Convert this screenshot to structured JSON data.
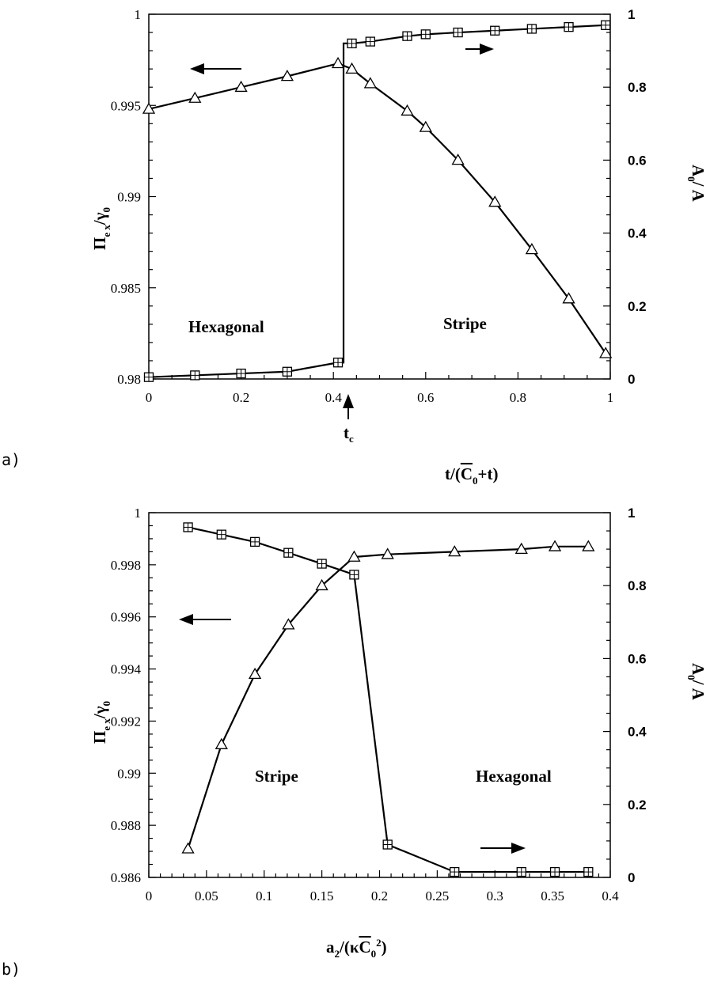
{
  "chart_data": [
    {
      "type": "line",
      "panel_label": "a)",
      "xlabel": "t/(C̄0+t)",
      "xlabel_parts": {
        "pre": "t/(",
        "C": "C",
        "sub": "0",
        "post": "+t)"
      },
      "ylabel_left": "Πex/γ0",
      "ylabel_left_parts": {
        "Pi": "Π",
        "sub1": "e x",
        "slash": "/",
        "gamma": "γ",
        "sub2": "0"
      },
      "ylabel_right": "A0/A",
      "ylabel_right_parts": {
        "A": "A",
        "sub": "0",
        "post": "/ A"
      },
      "xlim": [
        0,
        1
      ],
      "ylim_left": [
        0.98,
        1
      ],
      "ylim_right": [
        0,
        1
      ],
      "x_ticks": [
        "0",
        "0.2",
        "0.4",
        "0.6",
        "0.8",
        "1"
      ],
      "y_left_ticks": [
        "0.98",
        "0.985",
        "0.99",
        "0.995",
        "1"
      ],
      "y_right_ticks": [
        "0",
        "0.2",
        "0.4",
        "0.6",
        "0.8",
        "1"
      ],
      "annotations": {
        "left_region": "Hexagonal",
        "right_region": "Stripe",
        "tc": "t",
        "tc_sub": "c"
      },
      "tc_value": 0.422,
      "series": [
        {
          "marker": "triangle",
          "axis": "left",
          "x": [
            0,
            0.1,
            0.2,
            0.3,
            0.41,
            0.44,
            0.48,
            0.56,
            0.6,
            0.67,
            0.75,
            0.83,
            0.91,
            0.99
          ],
          "y": [
            0.9948,
            0.9954,
            0.996,
            0.9966,
            0.9973,
            0.997,
            0.9962,
            0.9947,
            0.9938,
            0.992,
            0.9897,
            0.9871,
            0.9844,
            0.9814
          ]
        },
        {
          "marker": "square-plus",
          "axis": "right",
          "x": [
            0,
            0.1,
            0.2,
            0.3,
            0.41,
            0.44,
            0.48,
            0.56,
            0.6,
            0.67,
            0.75,
            0.83,
            0.91,
            0.99
          ],
          "y": [
            0.005,
            0.01,
            0.015,
            0.02,
            0.045,
            0.92,
            0.925,
            0.94,
            0.945,
            0.95,
            0.955,
            0.96,
            0.965,
            0.97
          ]
        }
      ]
    },
    {
      "type": "line",
      "panel_label": "b)",
      "xlabel": "a2/(κC̄0²)",
      "xlabel_parts": {
        "a": "a",
        "sub": "2",
        "pre": "/(κ",
        "C": "C",
        "sub0": "0",
        "sup": "2",
        "post": ")"
      },
      "ylabel_left": "Πex/γ0",
      "ylabel_left_parts": {
        "Pi": "Π",
        "sub1": "e x",
        "slash": "/",
        "gamma": "γ",
        "sub2": "0"
      },
      "ylabel_right": "A0/A",
      "ylabel_right_parts": {
        "A": "A",
        "sub": "0",
        "post": "/ A"
      },
      "xlim": [
        0,
        0.4
      ],
      "ylim_left": [
        0.986,
        1
      ],
      "ylim_right": [
        0,
        1
      ],
      "x_ticks": [
        "0",
        "0.05",
        "0.1",
        "0.15",
        "0.2",
        "0.25",
        "0.3",
        "0.35",
        "0.4"
      ],
      "y_left_ticks": [
        "0.986",
        "0.988",
        "0.99",
        "0.992",
        "0.994",
        "0.996",
        "0.998",
        "1"
      ],
      "y_right_ticks": [
        "0",
        "0.2",
        "0.4",
        "0.6",
        "0.8",
        "1"
      ],
      "annotations": {
        "left_region": "Stripe",
        "right_region": "Hexagonal"
      },
      "series": [
        {
          "marker": "triangle",
          "axis": "left",
          "x": [
            0.034,
            0.063,
            0.092,
            0.121,
            0.15,
            0.178,
            0.207,
            0.265,
            0.323,
            0.352,
            0.381
          ],
          "y": [
            0.9871,
            0.9911,
            0.9938,
            0.9957,
            0.9972,
            0.9983,
            0.9984,
            0.9985,
            0.9986,
            0.9987,
            0.9987
          ]
        },
        {
          "marker": "square-plus",
          "axis": "right",
          "x": [
            0.034,
            0.063,
            0.092,
            0.121,
            0.15,
            0.178,
            0.207,
            0.265,
            0.323,
            0.352,
            0.381
          ],
          "y": [
            0.96,
            0.94,
            0.92,
            0.89,
            0.86,
            0.83,
            0.09,
            0.015,
            0.015,
            0.015,
            0.015
          ]
        }
      ]
    }
  ]
}
